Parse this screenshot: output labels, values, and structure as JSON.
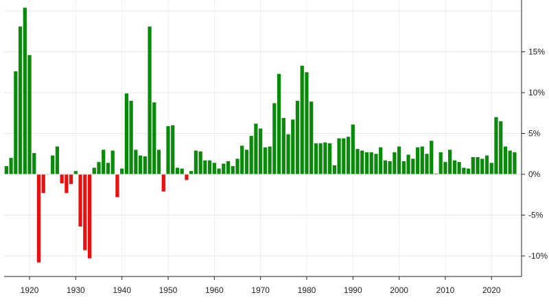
{
  "chart_data": {
    "type": "bar",
    "title": "",
    "xlabel": "",
    "ylabel": "",
    "x_tick_labels": [
      "1920",
      "1930",
      "1940",
      "1950",
      "1960",
      "1970",
      "1980",
      "1990",
      "2000",
      "2010",
      "2020"
    ],
    "y_tick_labels": [
      "15%",
      "10%",
      "5%",
      "0%",
      "-5%",
      "-10%"
    ],
    "y_tick_values": [
      15,
      10,
      5,
      0,
      -5,
      -10
    ],
    "ylim": [
      -12,
      20
    ],
    "xlim": [
      1914.5,
      2026.5
    ],
    "grid": true,
    "positive_color": "#0a8a0a",
    "negative_color": "#e81010",
    "series": [
      {
        "x": [
          1915,
          1916,
          1917,
          1918,
          1919,
          1920,
          1921,
          1922,
          1923,
          1924,
          1925,
          1926,
          1927,
          1928,
          1929,
          1930,
          1931,
          1932,
          1933,
          1934,
          1935,
          1936,
          1937,
          1938,
          1939,
          1940,
          1941,
          1942,
          1943,
          1944,
          1945,
          1946,
          1947,
          1948,
          1949,
          1950,
          1951,
          1952,
          1953,
          1954,
          1955,
          1956,
          1957,
          1958,
          1959,
          1960,
          1961,
          1962,
          1963,
          1964,
          1965,
          1966,
          1967,
          1968,
          1969,
          1970,
          1971,
          1972,
          1973,
          1974,
          1975,
          1976,
          1977,
          1978,
          1979,
          1980,
          1981,
          1982,
          1983,
          1984,
          1985,
          1986,
          1987,
          1988,
          1989,
          1990,
          1991,
          1992,
          1993,
          1994,
          1995,
          1996,
          1997,
          1998,
          1999,
          2000,
          2001,
          2002,
          2003,
          2004,
          2005,
          2006,
          2007,
          2008,
          2009,
          2010,
          2011,
          2012,
          2013,
          2014,
          2015,
          2016,
          2017,
          2018,
          2019,
          2020,
          2021,
          2022,
          2023,
          2024,
          2025
        ],
        "values": [
          1.0,
          2.0,
          12.6,
          18.1,
          20.4,
          14.6,
          2.6,
          -10.8,
          -2.3,
          0.0,
          2.3,
          3.4,
          -1.1,
          -2.3,
          -1.2,
          0.4,
          -6.4,
          -9.3,
          -10.3,
          0.8,
          1.5,
          3.0,
          1.4,
          2.9,
          -2.8,
          0.7,
          9.9,
          9.0,
          3.0,
          2.3,
          2.2,
          18.1,
          8.8,
          3.0,
          -2.1,
          5.9,
          6.0,
          0.8,
          0.7,
          -0.7,
          0.4,
          2.9,
          2.8,
          1.7,
          1.7,
          1.4,
          0.7,
          1.3,
          1.6,
          1.0,
          1.9,
          3.5,
          3.0,
          4.7,
          6.2,
          5.6,
          3.3,
          3.4,
          8.7,
          12.3,
          6.9,
          4.9,
          6.7,
          9.0,
          13.3,
          12.5,
          8.9,
          3.8,
          3.8,
          3.9,
          3.8,
          1.1,
          4.4,
          4.4,
          4.6,
          6.1,
          3.1,
          2.9,
          2.7,
          2.7,
          2.5,
          3.3,
          1.7,
          1.6,
          2.7,
          3.4,
          1.6,
          2.4,
          1.9,
          3.3,
          3.4,
          2.5,
          4.1,
          0.1,
          2.7,
          1.5,
          3.0,
          1.7,
          1.5,
          0.8,
          0.7,
          2.1,
          2.1,
          1.9,
          2.3,
          1.4,
          7.0,
          6.5,
          3.4,
          2.9,
          2.7
        ]
      }
    ]
  }
}
